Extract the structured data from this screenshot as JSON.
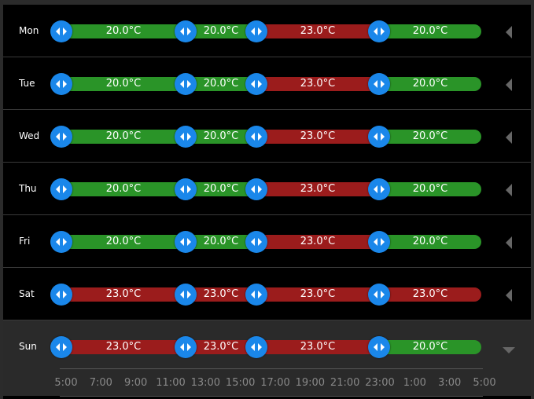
{
  "colors": {
    "comfort": "#2a9428",
    "heat": "#9b1c1c",
    "handle": "#1a87ea"
  },
  "schedule": [
    {
      "day": "Mon",
      "segments": [
        {
          "temp": "20.0°C",
          "mode": "comfort"
        },
        {
          "temp": "20.0°C",
          "mode": "comfort"
        },
        {
          "temp": "23.0°C",
          "mode": "heat"
        },
        {
          "temp": "20.0°C",
          "mode": "comfort"
        }
      ]
    },
    {
      "day": "Tue",
      "segments": [
        {
          "temp": "20.0°C",
          "mode": "comfort"
        },
        {
          "temp": "20.0°C",
          "mode": "comfort"
        },
        {
          "temp": "23.0°C",
          "mode": "heat"
        },
        {
          "temp": "20.0°C",
          "mode": "comfort"
        }
      ]
    },
    {
      "day": "Wed",
      "segments": [
        {
          "temp": "20.0°C",
          "mode": "comfort"
        },
        {
          "temp": "20.0°C",
          "mode": "comfort"
        },
        {
          "temp": "23.0°C",
          "mode": "heat"
        },
        {
          "temp": "20.0°C",
          "mode": "comfort"
        }
      ]
    },
    {
      "day": "Thu",
      "segments": [
        {
          "temp": "20.0°C",
          "mode": "comfort"
        },
        {
          "temp": "20.0°C",
          "mode": "comfort"
        },
        {
          "temp": "23.0°C",
          "mode": "heat"
        },
        {
          "temp": "20.0°C",
          "mode": "comfort"
        }
      ]
    },
    {
      "day": "Fri",
      "segments": [
        {
          "temp": "20.0°C",
          "mode": "comfort"
        },
        {
          "temp": "20.0°C",
          "mode": "comfort"
        },
        {
          "temp": "23.0°C",
          "mode": "heat"
        },
        {
          "temp": "20.0°C",
          "mode": "comfort"
        }
      ]
    },
    {
      "day": "Sat",
      "segments": [
        {
          "temp": "23.0°C",
          "mode": "heat"
        },
        {
          "temp": "23.0°C",
          "mode": "heat"
        },
        {
          "temp": "23.0°C",
          "mode": "heat"
        },
        {
          "temp": "23.0°C",
          "mode": "heat"
        }
      ]
    },
    {
      "day": "Sun",
      "expanded": true,
      "segments": [
        {
          "temp": "23.0°C",
          "mode": "heat"
        },
        {
          "temp": "23.0°C",
          "mode": "heat"
        },
        {
          "temp": "23.0°C",
          "mode": "heat"
        },
        {
          "temp": "20.0°C",
          "mode": "comfort"
        }
      ]
    }
  ],
  "time_axis": {
    "labels": [
      "5:00",
      "7:00",
      "9:00",
      "11:00",
      "13:00",
      "15:00",
      "17:00",
      "19:00",
      "21:00",
      "23:00",
      "1:00",
      "3:00",
      "5:00"
    ]
  }
}
